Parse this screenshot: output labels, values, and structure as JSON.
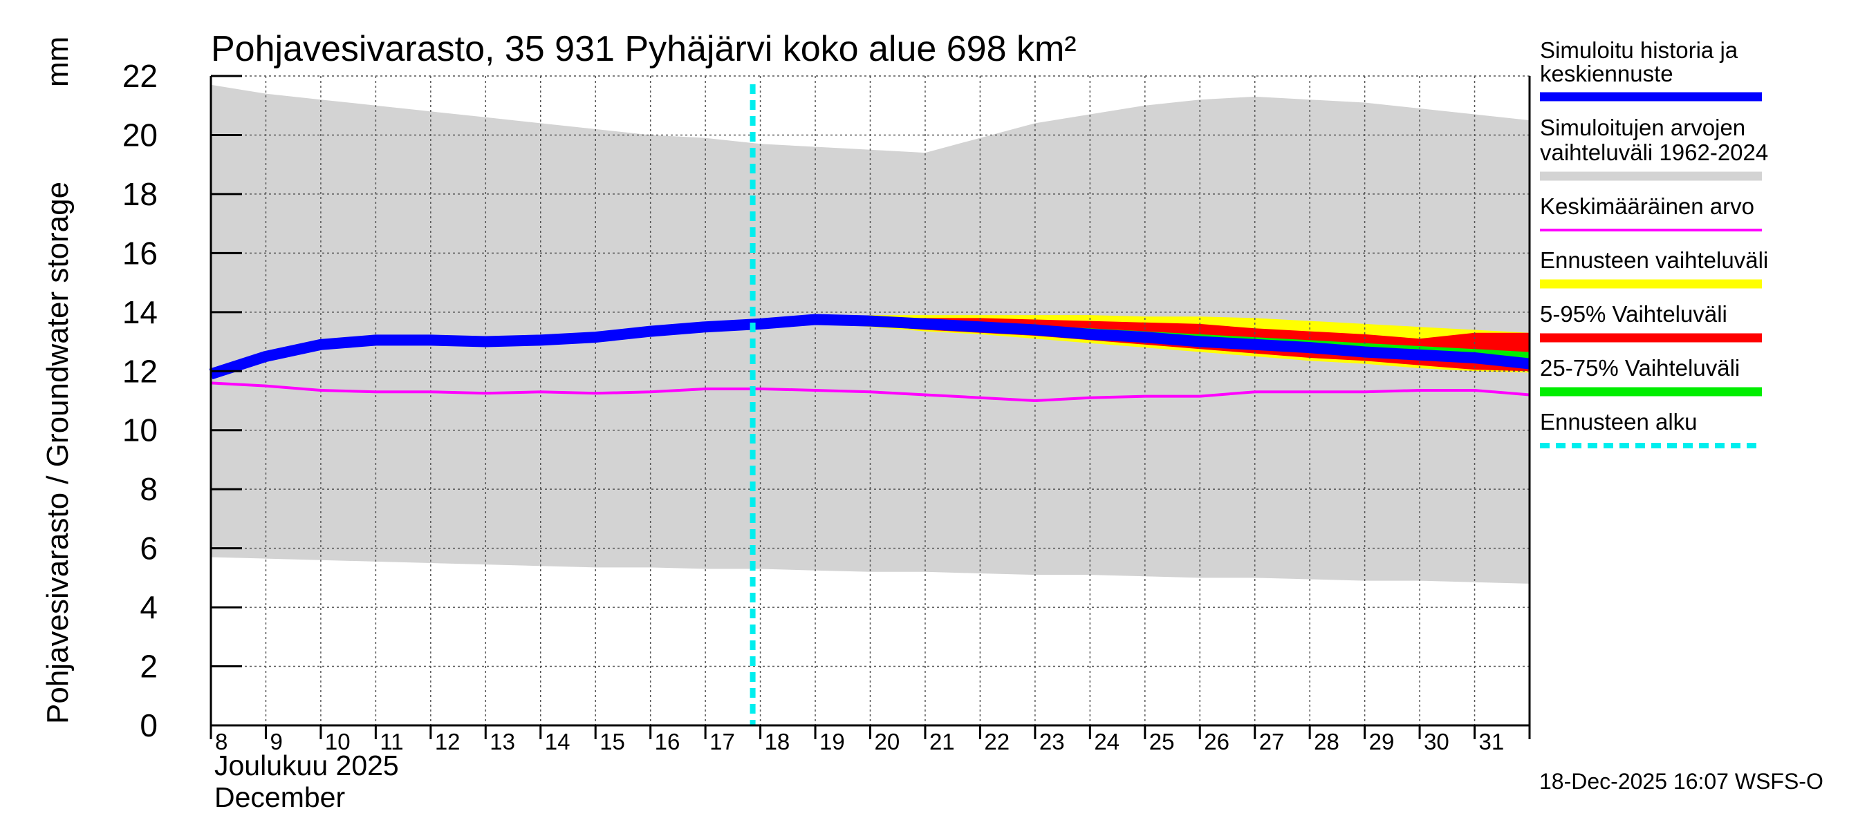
{
  "chart_data": {
    "type": "line",
    "title": "Pohjavesivarasto, 35 931 Pyhäjärvi koko alue 698 km²",
    "ylabel": "Pohjavesivarasto / Groundwater storage",
    "yunit": "mm",
    "xlabel_line1": "Joulukuu  2025",
    "xlabel_line2": "December",
    "ylim": [
      0,
      22
    ],
    "yticks": [
      0,
      2,
      4,
      6,
      8,
      10,
      12,
      14,
      16,
      18,
      20,
      22
    ],
    "xlim": [
      8,
      32
    ],
    "x_tick_labels": [
      "8",
      "9",
      "10",
      "11",
      "12",
      "13",
      "14",
      "15",
      "16",
      "17",
      "18",
      "19",
      "20",
      "21",
      "22",
      "23",
      "24",
      "25",
      "26",
      "27",
      "28",
      "29",
      "30",
      "31"
    ],
    "grid": true,
    "forecast_start_day": 18,
    "historical_range": {
      "x": [
        8,
        9,
        10,
        11,
        12,
        13,
        14,
        15,
        16,
        17,
        18,
        19,
        20,
        21,
        22,
        23,
        24,
        25,
        26,
        27,
        28,
        29,
        30,
        31,
        32
      ],
      "upper": [
        21.7,
        21.4,
        21.2,
        21.0,
        20.8,
        20.6,
        20.4,
        20.2,
        20.0,
        19.9,
        19.7,
        19.6,
        19.5,
        19.4,
        19.9,
        20.4,
        20.7,
        21.0,
        21.2,
        21.3,
        21.2,
        21.1,
        20.9,
        20.7,
        20.5
      ],
      "lower": [
        5.7,
        5.65,
        5.6,
        5.55,
        5.5,
        5.45,
        5.4,
        5.35,
        5.35,
        5.3,
        5.3,
        5.25,
        5.2,
        5.2,
        5.15,
        5.1,
        5.1,
        5.05,
        5.0,
        5.0,
        4.95,
        4.9,
        4.9,
        4.85,
        4.8
      ]
    },
    "series": [
      {
        "name": "Simuloitu historia ja keskiennuste",
        "x": [
          8,
          9,
          10,
          11,
          12,
          13,
          14,
          15,
          16,
          17,
          18,
          19,
          20,
          21,
          22,
          23,
          24,
          25,
          26,
          27,
          28,
          29,
          30,
          31,
          32
        ],
        "values": [
          11.9,
          12.5,
          12.9,
          13.05,
          13.05,
          13.0,
          13.05,
          13.15,
          13.35,
          13.5,
          13.6,
          13.75,
          13.7,
          13.6,
          13.5,
          13.4,
          13.25,
          13.15,
          13.0,
          12.9,
          12.8,
          12.65,
          12.55,
          12.45,
          12.25
        ]
      },
      {
        "name": "Keskimääräinen arvo",
        "x": [
          8,
          9,
          10,
          11,
          12,
          13,
          14,
          15,
          16,
          17,
          18,
          19,
          20,
          21,
          22,
          23,
          24,
          25,
          26,
          27,
          28,
          29,
          30,
          31,
          32
        ],
        "values": [
          11.6,
          11.5,
          11.35,
          11.3,
          11.3,
          11.25,
          11.3,
          11.25,
          11.3,
          11.4,
          11.4,
          11.35,
          11.3,
          11.2,
          11.1,
          11.0,
          11.1,
          11.15,
          11.15,
          11.3,
          11.3,
          11.3,
          11.35,
          11.35,
          11.2
        ]
      }
    ],
    "forecast_bands": [
      {
        "name": "Ennusteen vaihteluväli",
        "x": [
          19,
          20,
          21,
          22,
          23,
          24,
          25,
          26,
          27,
          28,
          29,
          30,
          31,
          32
        ],
        "upper": [
          13.8,
          13.9,
          13.9,
          13.9,
          13.9,
          13.9,
          13.85,
          13.85,
          13.8,
          13.7,
          13.6,
          13.5,
          13.4,
          13.3
        ],
        "lower": [
          13.65,
          13.5,
          13.35,
          13.25,
          13.1,
          12.95,
          12.8,
          12.65,
          12.5,
          12.35,
          12.25,
          12.1,
          12.0,
          11.95
        ]
      },
      {
        "name": "5-95% Vaihteluväli",
        "x": [
          19,
          20,
          21,
          22,
          23,
          24,
          25,
          26,
          27,
          28,
          29,
          30,
          31,
          32
        ],
        "upper": [
          13.75,
          13.8,
          13.8,
          13.8,
          13.75,
          13.7,
          13.65,
          13.6,
          13.45,
          13.35,
          13.25,
          13.1,
          13.3,
          13.3
        ],
        "lower": [
          13.7,
          13.55,
          13.4,
          13.3,
          13.2,
          13.05,
          12.9,
          12.75,
          12.6,
          12.45,
          12.35,
          12.2,
          12.05,
          12.0
        ]
      },
      {
        "name": "25-75% Vaihteluväli",
        "x": [
          19,
          20,
          21,
          22,
          23,
          24,
          25,
          26,
          27,
          28,
          29,
          30,
          31,
          32
        ],
        "upper": [
          13.75,
          13.75,
          13.7,
          13.6,
          13.55,
          13.45,
          13.35,
          13.25,
          13.15,
          13.05,
          12.95,
          12.85,
          12.75,
          12.65
        ],
        "lower": [
          13.72,
          13.65,
          13.55,
          13.45,
          13.35,
          13.2,
          13.05,
          12.95,
          12.8,
          12.65,
          12.55,
          12.45,
          12.35,
          12.2
        ]
      }
    ],
    "legend": [
      {
        "label": "Simuloitu historia ja keskiennuste",
        "color": "#0000ff",
        "style": "thick"
      },
      {
        "label": "Simuloitujen arvojen vaihteluväli 1962-2024",
        "color": "#d3d3d3",
        "style": "band"
      },
      {
        "label": "Keskimääräinen arvo",
        "color": "#ff00ff",
        "style": "thin"
      },
      {
        "label": "Ennusteen vaihteluväli",
        "color": "#ffff00",
        "style": "band"
      },
      {
        "label": "5-95% Vaihteluväli",
        "color": "#ff0000",
        "style": "band"
      },
      {
        "label": "25-75% Vaihteluväli",
        "color": "#00ee00",
        "style": "band"
      },
      {
        "label": "Ennusteen alku",
        "color": "#00eeee",
        "style": "dashed"
      }
    ],
    "colors": {
      "history": "#0000ff",
      "range": "#d3d3d3",
      "mean": "#ff00ff",
      "forecast_range": "#ffff00",
      "p5_95": "#ff0000",
      "p25_75": "#00ee00",
      "forecast_start": "#00eeee"
    }
  },
  "footer": {
    "timestamp": "18-Dec-2025 16:07 WSFS-O"
  }
}
